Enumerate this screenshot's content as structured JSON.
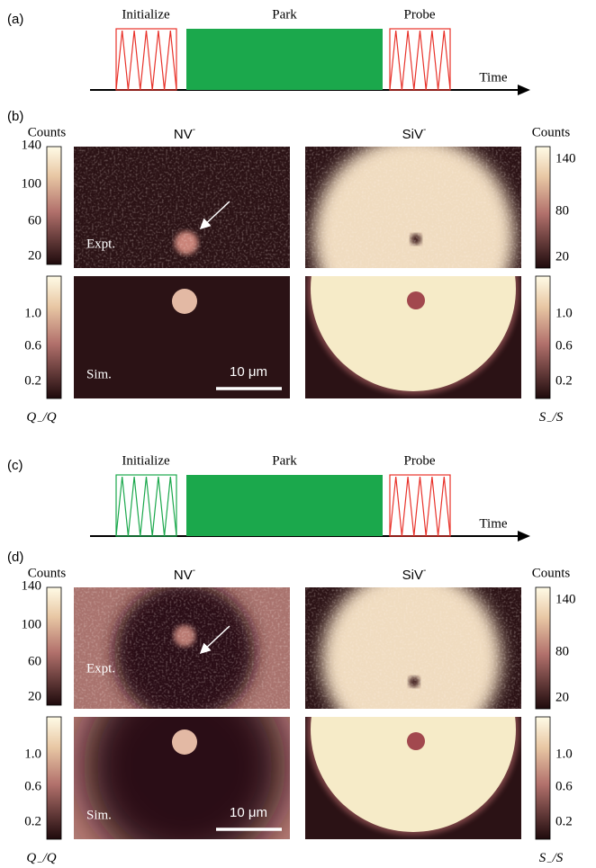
{
  "timing_panels": [
    {
      "label": "(a)",
      "initialize": "Initialize",
      "park": "Park",
      "probe": "Probe",
      "time": "Time"
    },
    {
      "label": "(c)",
      "initialize": "Initialize",
      "park": "Park",
      "probe": "Probe",
      "time": "Time"
    }
  ],
  "map_panels": [
    {
      "label": "(b)",
      "counts_left": "Counts",
      "nv": "NV",
      "nv_sup": "-",
      "siv": "SiV",
      "siv_sup": "-",
      "counts_right": "Counts",
      "left_ticks_expt": [
        "140",
        "100",
        "60",
        "20"
      ],
      "right_ticks_expt": [
        "140",
        "80",
        "20"
      ],
      "left_ticks_sim": [
        "1.0",
        "0.6",
        "0.2"
      ],
      "right_ticks_sim": [
        "1.0",
        "0.6",
        "0.2"
      ],
      "expt": "Expt.",
      "sim": "Sim.",
      "scale_bar": "10 μm",
      "q_ratio": {
        "num": "Q",
        "sub": "−",
        "den": "/Q"
      },
      "s_ratio": {
        "num": "S",
        "sub": "−",
        "den": "/S"
      }
    },
    {
      "label": "(d)",
      "counts_left": "Counts",
      "nv": "NV",
      "nv_sup": "-",
      "siv": "SiV",
      "siv_sup": "-",
      "counts_right": "Counts",
      "left_ticks_expt": [
        "140",
        "100",
        "60",
        "20"
      ],
      "right_ticks_expt": [
        "140",
        "80",
        "20"
      ],
      "left_ticks_sim": [
        "1.0",
        "0.6",
        "0.2"
      ],
      "right_ticks_sim": [
        "1.0",
        "0.6",
        "0.2"
      ],
      "expt": "Expt.",
      "sim": "Sim.",
      "scale_bar": "10 μm",
      "q_ratio": {
        "num": "Q",
        "sub": "−",
        "den": "/Q"
      },
      "s_ratio": {
        "num": "S",
        "sub": "−",
        "den": "/S"
      }
    }
  ]
}
